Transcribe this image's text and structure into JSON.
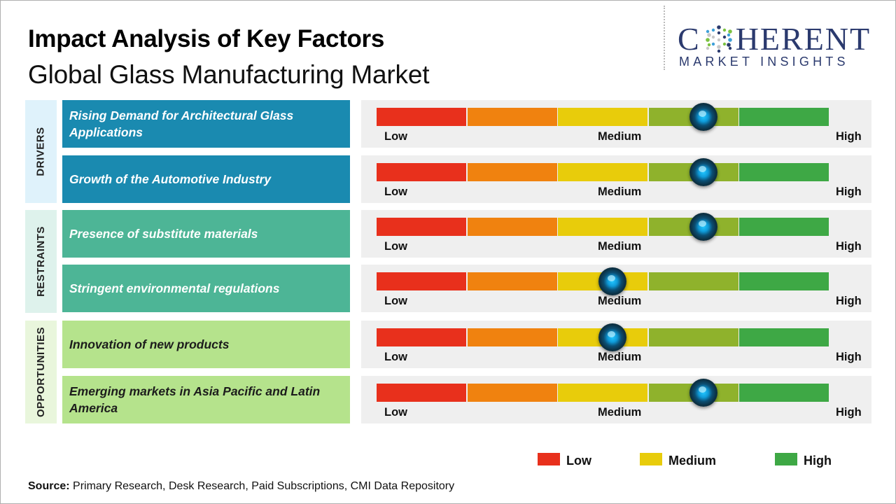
{
  "header": {
    "title": "Impact Analysis of Key Factors",
    "subtitle": "Global Glass Manufacturing Market"
  },
  "logo": {
    "word_before": "C",
    "word_after": "HERENT",
    "subtext": "MARKET INSIGHTS",
    "color": "#2b3a6e"
  },
  "categories": [
    {
      "label": "DRIVERS",
      "color": "#dff2fb"
    },
    {
      "label": "RESTRAINTS",
      "color": "#def2ec"
    },
    {
      "label": "OPPORTUNITIES",
      "color": "#e9f6dc"
    }
  ],
  "scale_labels": {
    "low": "Low",
    "medium": "Medium",
    "high": "High"
  },
  "segment_colors": [
    "#e8301c",
    "#f0820f",
    "#e8cc0b",
    "#8fb22c",
    "#3ea845"
  ],
  "chart_data": {
    "type": "gauge",
    "title": "Impact Analysis of Key Factors",
    "subtitle": "Global Glass Manufacturing Market",
    "scale": [
      "Low",
      "Medium",
      "High"
    ],
    "range": [
      0,
      1
    ],
    "factors": [
      {
        "category": "DRIVERS",
        "label": "Rising Demand for Architectural Glass Applications",
        "impact": 0.72
      },
      {
        "category": "DRIVERS",
        "label": "Growth of the Automotive Industry",
        "impact": 0.72
      },
      {
        "category": "RESTRAINTS",
        "label": "Presence  of substitute  materials",
        "impact": 0.72
      },
      {
        "category": "RESTRAINTS",
        "label": "Stringent  environmental  regulations",
        "impact": 0.52
      },
      {
        "category": "OPPORTUNITIES",
        "label": "Innovation  of new products",
        "impact": 0.52
      },
      {
        "category": "OPPORTUNITIES",
        "label": "Emerging  markets  in Asia Pacific and Latin America",
        "impact": 0.72
      }
    ],
    "legend": [
      {
        "label": "Low",
        "color": "#e8301c"
      },
      {
        "label": "Medium",
        "color": "#e8cc0b"
      },
      {
        "label": "High",
        "color": "#3ea845"
      }
    ]
  },
  "factor_colors": [
    "#1a8ab0",
    "#1a8ab0",
    "#4db596",
    "#4db596",
    "#b5e38c",
    "#b5e38c"
  ],
  "source": {
    "label": "Source:",
    "text": " Primary Research, Desk Research, Paid Subscriptions, CMI Data Repository"
  }
}
